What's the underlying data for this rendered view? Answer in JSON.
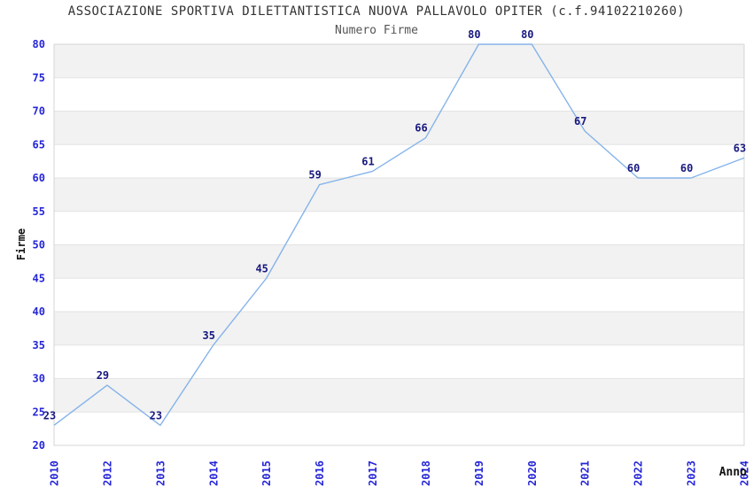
{
  "chart_data": {
    "type": "line",
    "title": "ASSOCIAZIONE SPORTIVA DILETTANTISTICA NUOVA PALLAVOLO OPITER (c.f.94102210260)",
    "subtitle": "Numero Firme",
    "xlabel": "Anno",
    "ylabel": "Firme",
    "categories": [
      "2010",
      "2012",
      "2013",
      "2014",
      "2015",
      "2016",
      "2017",
      "2018",
      "2019",
      "2020",
      "2021",
      "2022",
      "2023",
      "2024"
    ],
    "values": [
      23,
      29,
      23,
      35,
      45,
      59,
      61,
      66,
      80,
      80,
      67,
      60,
      60,
      63
    ],
    "ylim": [
      20,
      80
    ],
    "ytick_step": 5,
    "yticks": [
      20,
      25,
      30,
      35,
      40,
      45,
      50,
      55,
      60,
      65,
      70,
      75,
      80
    ],
    "grid": "horizontal-bands-alternating",
    "legend": "none",
    "colors": {
      "line": "#85b3ea",
      "tick_label": "#2626d8",
      "data_label": "#191980",
      "band_gray": "#f2f2f2",
      "band_white": "#ffffff",
      "gridline": "#e3e3e3",
      "plot_border": "#d4d4d4",
      "title": "#333333",
      "subtitle": "#555555",
      "axis_label": "#111111"
    }
  }
}
